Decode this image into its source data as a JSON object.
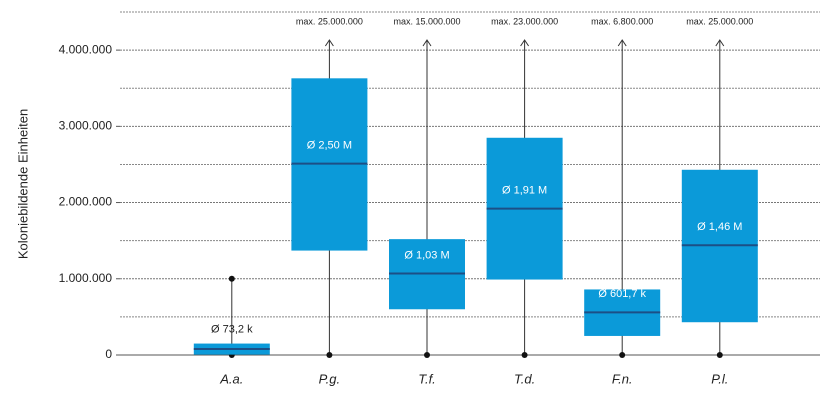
{
  "chart_data": {
    "type": "box",
    "y_label": "Koloniebildende Einheiten",
    "categories": [
      "A.a.",
      "P.g.",
      "T.f.",
      "T.d.",
      "F.n.",
      "P.l."
    ],
    "whisker_low": [
      0,
      0,
      0,
      0,
      0,
      0
    ],
    "q1": [
      5000,
      1370000,
      600000,
      990000,
      250000,
      430000
    ],
    "median": [
      78000,
      2510000,
      1070000,
      1920000,
      560000,
      1440000
    ],
    "q3": [
      150000,
      3630000,
      1520000,
      2850000,
      860000,
      2430000
    ],
    "whisker_high": [
      1000000,
      25000000,
      15000000,
      23000000,
      6800000,
      25000000
    ],
    "whisker_high_labels": [
      null,
      "max. 25.000.000",
      "max. 15.000.000",
      "max. 23.000.000",
      "max. 6.800.000",
      "max. 25.000.000"
    ],
    "means": [
      73200,
      2500000,
      1030000,
      1910000,
      601700,
      1460000
    ],
    "mean_labels": [
      "Ø 73,2 k",
      "Ø 2,50 M",
      "Ø 1,03 M",
      "Ø 1,91 M",
      "Ø 601,7 k",
      "Ø 1,46 M"
    ],
    "color": "#0b9ad9",
    "median_color": "#1c4f86",
    "ylim": [
      0,
      4500000
    ],
    "yticks": [
      {
        "value": 0,
        "label": "0"
      },
      {
        "value": 1000000,
        "label": "1.000.000"
      },
      {
        "value": 2000000,
        "label": "2.000.000"
      },
      {
        "value": 3000000,
        "label": "3.000.000"
      },
      {
        "value": 4000000,
        "label": "4.000.000"
      }
    ],
    "minor_yticks": [
      500000,
      1500000,
      2500000,
      3500000,
      4500000
    ],
    "grid": true
  }
}
